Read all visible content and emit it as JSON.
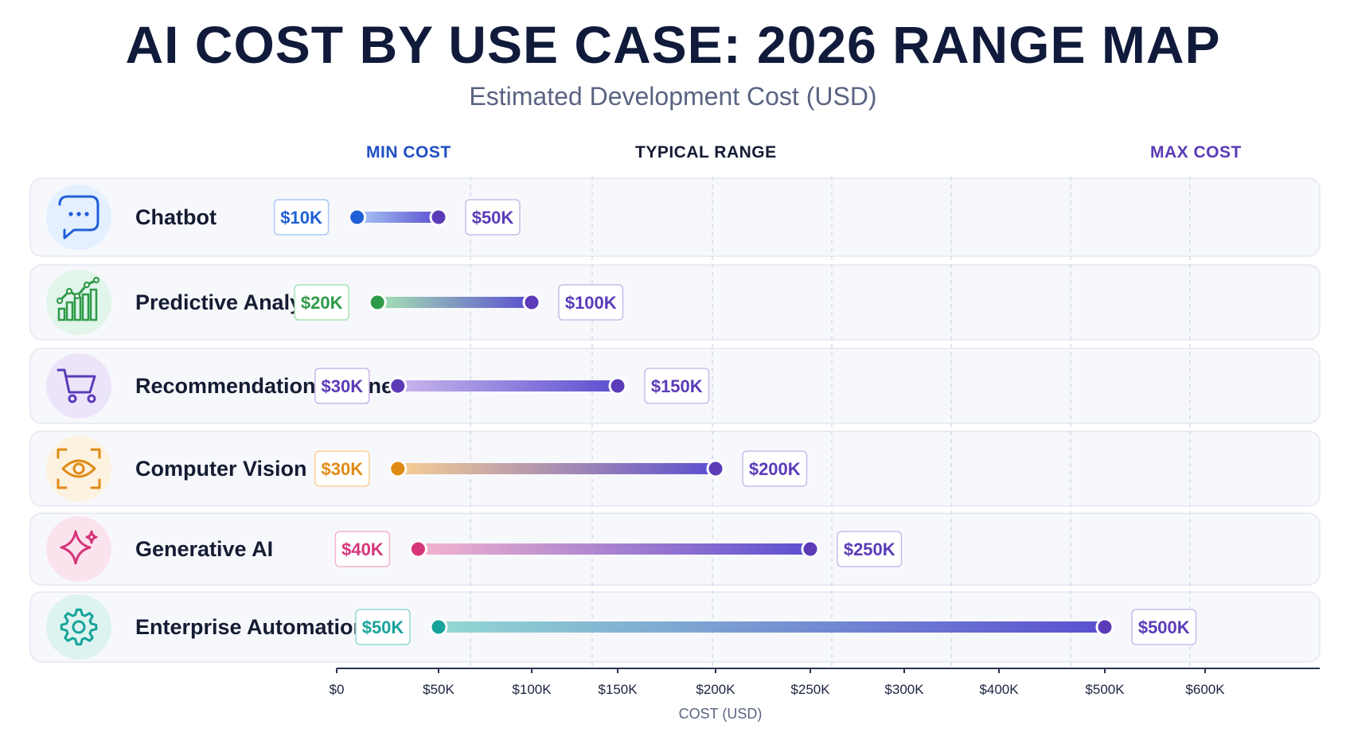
{
  "header": {
    "title": "AI COST BY USE CASE: 2026 RANGE MAP",
    "subtitle": "Estimated Development Cost (USD)"
  },
  "columns": {
    "min": "MIN COST",
    "typical": "TYPICAL RANGE",
    "max": "MAX COST"
  },
  "colors": {
    "min_heading": "#1f4fc4",
    "typical_heading": "#151b33",
    "max_heading": "#5a3ab8"
  },
  "chart_data": {
    "type": "range",
    "title": "AI COST BY USE CASE: 2026 RANGE MAP",
    "subtitle": "Estimated Development Cost (USD)",
    "xlabel": "COST (USD)",
    "x_ticks": [
      "$0",
      "$50K",
      "$100K",
      "$150K",
      "$200K",
      "$250K",
      "$300K",
      "$400K",
      "$500K",
      "$600K"
    ],
    "x_tick_values": [
      0,
      50000,
      100000,
      150000,
      200000,
      250000,
      300000,
      400000,
      500000,
      600000
    ],
    "grid": true,
    "series": [
      {
        "category": "Chatbot",
        "min": 10000,
        "max": 50000,
        "min_label": "$10K",
        "max_label": "$50K",
        "icon": "chat-bubble-icon",
        "color": "#1f5fd6",
        "light": "#a9c9f5",
        "icon_bg": "#e4efff"
      },
      {
        "category": "Predictive Analytics",
        "min": 20000,
        "max": 100000,
        "min_label": "$20K",
        "max_label": "$100K",
        "icon": "analytics-chart-icon",
        "color": "#2f9a48",
        "light": "#a6e3b3",
        "icon_bg": "#e1f5ea"
      },
      {
        "category": "Recommendation Engine",
        "min": 30000,
        "max": 150000,
        "min_label": "$30K",
        "max_label": "$150K",
        "icon": "shopping-cart-icon",
        "color": "#5b3bb8",
        "light": "#c9b6ec",
        "icon_bg": "#ece5fa"
      },
      {
        "category": "Computer Vision",
        "min": 30000,
        "max": 200000,
        "min_label": "$30K",
        "max_label": "$200K",
        "icon": "eye-scan-icon",
        "color": "#e08a14",
        "light": "#f8cf93",
        "icon_bg": "#fdf1df"
      },
      {
        "category": "Generative AI",
        "min": 40000,
        "max": 250000,
        "min_label": "$40K",
        "max_label": "$250K",
        "icon": "sparkle-icon",
        "color": "#d6367a",
        "light": "#f4b4cf",
        "icon_bg": "#fbe3ee"
      },
      {
        "category": "Enterprise Automation",
        "min": 50000,
        "max": 500000,
        "min_label": "$50K",
        "max_label": "$500K",
        "icon": "gear-icon",
        "color": "#17a39a",
        "light": "#92d9d3",
        "icon_bg": "#ddf3f0"
      }
    ]
  }
}
